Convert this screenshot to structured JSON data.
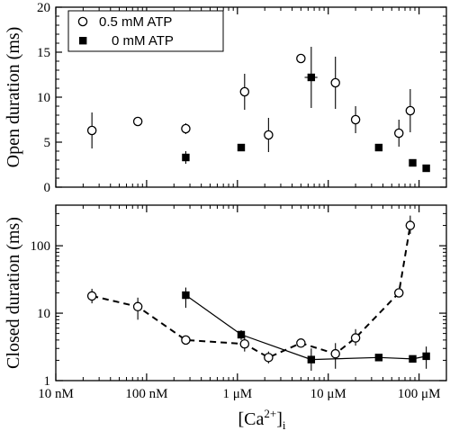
{
  "chart_data": [
    {
      "type": "scatter",
      "ylabel": "Open duration (ms)",
      "xscale": "log",
      "xlim": [
        1e-08,
        0.0002
      ],
      "ylim": [
        0,
        20
      ],
      "yticks": [
        "0",
        "5",
        "10",
        "15",
        "20"
      ],
      "legend": {
        "placement": "top-left",
        "entries": [
          {
            "label": "0.5 mM ATP",
            "marker": "open-circle"
          },
          {
            "label": "0 mM ATP",
            "marker": "filled-square"
          }
        ]
      },
      "series": [
        {
          "name": "0.5 mM ATP",
          "marker": "open-circle",
          "points": [
            {
              "x": 2.5e-08,
              "y": 6.3,
              "err": 2.0
            },
            {
              "x": 8e-08,
              "y": 7.3,
              "err": 0.4
            },
            {
              "x": 2.7e-07,
              "y": 6.5,
              "err": 0.6
            },
            {
              "x": 1.2e-06,
              "y": 10.6,
              "err": 2.0
            },
            {
              "x": 2.2e-06,
              "y": 5.8,
              "err": 1.9
            },
            {
              "x": 5e-06,
              "y": 14.3,
              "err": 0.3
            },
            {
              "x": 1.2e-05,
              "y": 11.6,
              "err": 2.9
            },
            {
              "x": 2e-05,
              "y": 7.5,
              "err": 1.5
            },
            {
              "x": 6e-05,
              "y": 6.0,
              "err": 1.5
            },
            {
              "x": 8e-05,
              "y": 8.5,
              "err": 2.4
            }
          ]
        },
        {
          "name": "0 mM ATP",
          "marker": "filled-square",
          "points": [
            {
              "x": 2.7e-07,
              "y": 3.3,
              "err": 0.7
            },
            {
              "x": 1.1e-06,
              "y": 4.4,
              "err": 0.3
            },
            {
              "x": 6.5e-06,
              "y": 12.2,
              "err": 3.4,
              "xerr": [
                5.5e-06,
                7.6e-06
              ]
            },
            {
              "x": 3.6e-05,
              "y": 4.4,
              "err": 0.3
            },
            {
              "x": 8.5e-05,
              "y": 2.7,
              "err": 0.2
            },
            {
              "x": 0.00012,
              "y": 2.1,
              "err": 0.2
            }
          ]
        }
      ]
    },
    {
      "type": "line",
      "ylabel": "Closed duration (ms)",
      "yscale": "log",
      "xscale": "log",
      "xlim": [
        1e-08,
        0.0002
      ],
      "ylim": [
        1,
        400
      ],
      "yticks": [
        "1",
        "10",
        "100"
      ],
      "xticks": [
        "10 nM",
        "100 nM",
        "1 μM",
        "10 μM",
        "100 μM"
      ],
      "xlabel_main": "[Ca",
      "xlabel_sup": "2+",
      "xlabel_close": "]",
      "xlabel_sub": "i",
      "series": [
        {
          "name": "0.5 mM ATP",
          "marker": "open-circle",
          "line": "dashed",
          "points": [
            {
              "x": 2.5e-08,
              "y": 18,
              "lo": 14,
              "hi": 23
            },
            {
              "x": 8e-08,
              "y": 12.5,
              "lo": 8,
              "hi": 17
            },
            {
              "x": 2.7e-07,
              "y": 4.0,
              "lo": 3.8,
              "hi": 4.2
            },
            {
              "x": 1.2e-06,
              "y": 3.5,
              "lo": 2.7,
              "hi": 4.5
            },
            {
              "x": 2.2e-06,
              "y": 2.2,
              "lo": 1.8,
              "hi": 2.7
            },
            {
              "x": 5e-06,
              "y": 3.6,
              "lo": 3.3,
              "hi": 3.9
            },
            {
              "x": 1.2e-05,
              "y": 2.5,
              "lo": 1.5,
              "hi": 3.6
            },
            {
              "x": 2e-05,
              "y": 4.3,
              "lo": 3.3,
              "hi": 5.8
            },
            {
              "x": 6e-05,
              "y": 20,
              "lo": 18,
              "hi": 22
            },
            {
              "x": 8e-05,
              "y": 200,
              "lo": 150,
              "hi": 280
            }
          ]
        },
        {
          "name": "0 mM ATP",
          "marker": "filled-square",
          "line": "solid",
          "points": [
            {
              "x": 2.7e-07,
              "y": 18.5,
              "lo": 12,
              "hi": 24
            },
            {
              "x": 1.1e-06,
              "y": 4.8,
              "lo": 4.0,
              "hi": 5.6
            },
            {
              "x": 6.5e-06,
              "y": 2.05,
              "lo": 1.4,
              "hi": 3.0
            },
            {
              "x": 3.6e-05,
              "y": 2.2,
              "lo": 2.1,
              "hi": 2.3
            },
            {
              "x": 8.5e-05,
              "y": 2.1,
              "lo": 2.0,
              "hi": 2.2
            },
            {
              "x": 0.00012,
              "y": 2.3,
              "lo": 1.5,
              "hi": 3.2
            }
          ]
        }
      ]
    }
  ]
}
